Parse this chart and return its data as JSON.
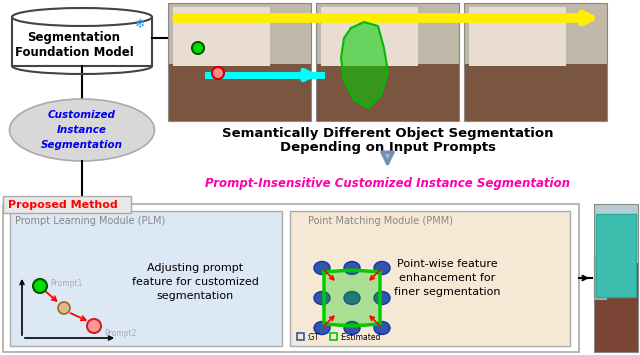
{
  "bg_color": "#ffffff",
  "top_text1": "Semantically Different Object Segmentation",
  "top_text2": "Depending on Input Prompts",
  "pink_text": "Prompt-Insensitive Customized Instance Segmentation",
  "proposed_label": "Proposed Method",
  "plm_title": "Prompt Learning Module (PLM)",
  "plm_text": "Adjusting prompt\nfeature for customized\nsegmentation",
  "pmm_title": "Point Matching Module (PMM)",
  "pmm_text": "Point-wise feature\nenhancement for\nfiner segmentation",
  "sfm_line1": "Segmentation",
  "sfm_line2": "Foundation Model",
  "cis_text": "Customized\nInstance\nSegmentation",
  "prompt1_label": "Prompt1",
  "prompt2_label": "Prompt2",
  "gt_label": "□:GT",
  "est_label": "□:Estimated"
}
